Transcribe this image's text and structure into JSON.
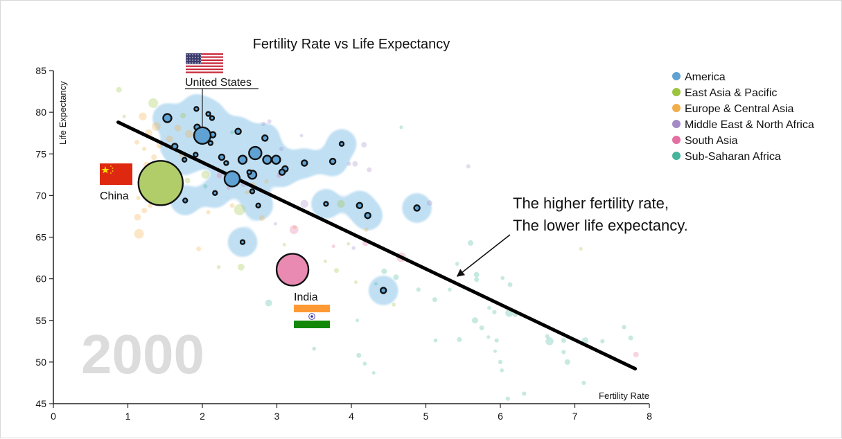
{
  "chart_data": {
    "type": "scatter",
    "title": "Fertility Rate vs Life Expectancy",
    "xlabel": "Fertility Rate",
    "ylabel": "Life Expectancy",
    "xlim": [
      0,
      8
    ],
    "ylim": [
      45,
      85
    ],
    "x_ticks": [
      "0",
      "1",
      "2",
      "3",
      "4",
      "5",
      "6",
      "7",
      "8"
    ],
    "y_ticks": [
      "45",
      "50",
      "55",
      "60",
      "65",
      "70",
      "75",
      "80",
      "85"
    ],
    "grid": false,
    "year": "2000",
    "legend_position": "top-right",
    "regions": [
      {
        "name": "America",
        "color": "#5fa2d3"
      },
      {
        "name": "East Asia & Pacific",
        "color": "#9cc43e"
      },
      {
        "name": "Europe & Central Asia",
        "color": "#f2ae4a"
      },
      {
        "name": "Middle East & North Africa",
        "color": "#a48ac7"
      },
      {
        "name": "South Asia",
        "color": "#e46fa0"
      },
      {
        "name": "Sub-Saharan Africa",
        "color": "#46b59b"
      }
    ],
    "highlighted_region": "America",
    "trend_line": {
      "x": [
        0.87,
        7.81
      ],
      "y": [
        78.8,
        49.2
      ]
    },
    "labeled_countries": [
      {
        "name": "United States",
        "region": "America",
        "x": 2.0,
        "y": 77.2,
        "size": 177,
        "flag": "us-flag",
        "label_position": "above-with-leader"
      },
      {
        "name": "China",
        "region": "East Asia & Pacific",
        "x": 1.44,
        "y": 71.5,
        "size": 1262,
        "flag": "china-flag",
        "label_position": "left"
      },
      {
        "name": "India",
        "region": "South Asia",
        "x": 3.21,
        "y": 61.1,
        "size": 652,
        "flag": "india-flag",
        "label_position": "below"
      }
    ],
    "annotation": {
      "lines": [
        "The higher fertility rate,",
        "The lower life expectancy."
      ],
      "arrow_target": {
        "x": 5.42,
        "y": 60.3
      }
    },
    "points": [
      {
        "region": "America",
        "x": 1.53,
        "y": 79.3,
        "size": 44
      },
      {
        "region": "America",
        "x": 1.92,
        "y": 80.4,
        "size": 11
      },
      {
        "region": "America",
        "x": 2.08,
        "y": 79.8,
        "size": 11
      },
      {
        "region": "America",
        "x": 2.13,
        "y": 79.3,
        "size": 11
      },
      {
        "region": "America",
        "x": 1.93,
        "y": 78.2,
        "size": 20
      },
      {
        "region": "America",
        "x": 2.14,
        "y": 77.3,
        "size": 20
      },
      {
        "region": "America",
        "x": 2.11,
        "y": 76.3,
        "size": 11
      },
      {
        "region": "America",
        "x": 1.63,
        "y": 75.9,
        "size": 20
      },
      {
        "region": "America",
        "x": 1.91,
        "y": 74.9,
        "size": 11
      },
      {
        "region": "America",
        "x": 1.76,
        "y": 74.3,
        "size": 11
      },
      {
        "region": "America",
        "x": 2.26,
        "y": 74.6,
        "size": 20
      },
      {
        "region": "America",
        "x": 2.32,
        "y": 73.9,
        "size": 11
      },
      {
        "region": "America",
        "x": 2.48,
        "y": 77.7,
        "size": 20
      },
      {
        "region": "America",
        "x": 2.84,
        "y": 76.9,
        "size": 20
      },
      {
        "region": "America",
        "x": 2.71,
        "y": 75.1,
        "size": 100
      },
      {
        "region": "America",
        "x": 2.54,
        "y": 74.3,
        "size": 44
      },
      {
        "region": "America",
        "x": 2.87,
        "y": 74.3,
        "size": 44
      },
      {
        "region": "America",
        "x": 2.99,
        "y": 74.3,
        "size": 44
      },
      {
        "region": "America",
        "x": 3.11,
        "y": 73.2,
        "size": 20
      },
      {
        "region": "America",
        "x": 3.07,
        "y": 72.8,
        "size": 20
      },
      {
        "region": "America",
        "x": 2.67,
        "y": 72.5,
        "size": 44
      },
      {
        "region": "America",
        "x": 2.63,
        "y": 72.8,
        "size": 11
      },
      {
        "region": "America",
        "x": 2.4,
        "y": 72.0,
        "size": 150
      },
      {
        "region": "America",
        "x": 2.17,
        "y": 70.3,
        "size": 11
      },
      {
        "region": "America",
        "x": 2.67,
        "y": 70.5,
        "size": 11
      },
      {
        "region": "America",
        "x": 1.77,
        "y": 69.4,
        "size": 11
      },
      {
        "region": "America",
        "x": 2.75,
        "y": 68.8,
        "size": 11
      },
      {
        "region": "America",
        "x": 3.37,
        "y": 73.9,
        "size": 20
      },
      {
        "region": "America",
        "x": 3.75,
        "y": 74.1,
        "size": 20
      },
      {
        "region": "America",
        "x": 3.87,
        "y": 76.2,
        "size": 11
      },
      {
        "region": "America",
        "x": 3.66,
        "y": 69.0,
        "size": 11
      },
      {
        "region": "America",
        "x": 4.11,
        "y": 68.8,
        "size": 20
      },
      {
        "region": "America",
        "x": 4.22,
        "y": 67.6,
        "size": 20
      },
      {
        "region": "America",
        "x": 4.88,
        "y": 68.5,
        "size": 20
      },
      {
        "region": "America",
        "x": 2.54,
        "y": 64.4,
        "size": 11
      },
      {
        "region": "America",
        "x": 4.43,
        "y": 58.6,
        "size": 20
      },
      {
        "region": "East Asia & Pacific",
        "x": 0.88,
        "y": 82.7,
        "size": 20
      },
      {
        "region": "East Asia & Pacific",
        "x": 1.34,
        "y": 81.1,
        "size": 60
      },
      {
        "region": "East Asia & Pacific",
        "x": 0.95,
        "y": 79.5,
        "size": 8
      },
      {
        "region": "East Asia & Pacific",
        "x": 1.74,
        "y": 79.6,
        "size": 20
      },
      {
        "region": "East Asia & Pacific",
        "x": 2.04,
        "y": 72.5,
        "size": 40
      },
      {
        "region": "East Asia & Pacific",
        "x": 1.8,
        "y": 71.8,
        "size": 20
      },
      {
        "region": "East Asia & Pacific",
        "x": 2.5,
        "y": 68.3,
        "size": 80
      },
      {
        "region": "East Asia & Pacific",
        "x": 2.52,
        "y": 61.4,
        "size": 30
      },
      {
        "region": "East Asia & Pacific",
        "x": 2.22,
        "y": 61.4,
        "size": 10
      },
      {
        "region": "East Asia & Pacific",
        "x": 3.86,
        "y": 69.0,
        "size": 40
      },
      {
        "region": "East Asia & Pacific",
        "x": 3.96,
        "y": 64.2,
        "size": 8
      },
      {
        "region": "East Asia & Pacific",
        "x": 3.8,
        "y": 61.0,
        "size": 15
      },
      {
        "region": "East Asia & Pacific",
        "x": 3.1,
        "y": 64.1,
        "size": 8
      },
      {
        "region": "East Asia & Pacific",
        "x": 3.65,
        "y": 62.1,
        "size": 8
      },
      {
        "region": "East Asia & Pacific",
        "x": 4.06,
        "y": 59.6,
        "size": 8
      },
      {
        "region": "East Asia & Pacific",
        "x": 4.57,
        "y": 56.9,
        "size": 10
      },
      {
        "region": "East Asia & Pacific",
        "x": 7.08,
        "y": 63.6,
        "size": 8
      },
      {
        "region": "Europe & Central Asia",
        "x": 1.2,
        "y": 79.5,
        "size": 40
      },
      {
        "region": "Europe & Central Asia",
        "x": 1.38,
        "y": 78.3,
        "size": 50
      },
      {
        "region": "Europe & Central Asia",
        "x": 1.28,
        "y": 77.5,
        "size": 35
      },
      {
        "region": "Europe & Central Asia",
        "x": 1.67,
        "y": 78.1,
        "size": 30
      },
      {
        "region": "Europe & Central Asia",
        "x": 1.82,
        "y": 77.4,
        "size": 40
      },
      {
        "region": "Europe & Central Asia",
        "x": 1.56,
        "y": 76.8,
        "size": 30
      },
      {
        "region": "Europe & Central Asia",
        "x": 1.42,
        "y": 76.0,
        "size": 20
      },
      {
        "region": "Europe & Central Asia",
        "x": 1.12,
        "y": 76.4,
        "size": 15
      },
      {
        "region": "Europe & Central Asia",
        "x": 1.22,
        "y": 75.6,
        "size": 12
      },
      {
        "region": "Europe & Central Asia",
        "x": 1.35,
        "y": 74.6,
        "size": 20
      },
      {
        "region": "Europe & Central Asia",
        "x": 1.25,
        "y": 73.7,
        "size": 25
      },
      {
        "region": "Europe & Central Asia",
        "x": 1.72,
        "y": 74.9,
        "size": 20
      },
      {
        "region": "Europe & Central Asia",
        "x": 1.03,
        "y": 73.2,
        "size": 12
      },
      {
        "region": "Europe & Central Asia",
        "x": 1.16,
        "y": 71.6,
        "size": 15
      },
      {
        "region": "Europe & Central Asia",
        "x": 1.14,
        "y": 69.7,
        "size": 12
      },
      {
        "region": "Europe & Central Asia",
        "x": 1.3,
        "y": 68.8,
        "size": 15
      },
      {
        "region": "Europe & Central Asia",
        "x": 1.22,
        "y": 68.2,
        "size": 20
      },
      {
        "region": "Europe & Central Asia",
        "x": 1.13,
        "y": 67.4,
        "size": 30
      },
      {
        "region": "Europe & Central Asia",
        "x": 1.15,
        "y": 65.4,
        "size": 60
      },
      {
        "region": "Europe & Central Asia",
        "x": 1.95,
        "y": 63.6,
        "size": 15
      },
      {
        "region": "Europe & Central Asia",
        "x": 2.4,
        "y": 68.8,
        "size": 15
      },
      {
        "region": "Europe & Central Asia",
        "x": 2.8,
        "y": 67.3,
        "size": 20
      },
      {
        "region": "Europe & Central Asia",
        "x": 2.6,
        "y": 70.4,
        "size": 12
      },
      {
        "region": "Europe & Central Asia",
        "x": 2.68,
        "y": 71.3,
        "size": 15
      },
      {
        "region": "Europe & Central Asia",
        "x": 2.08,
        "y": 68.0,
        "size": 12
      },
      {
        "region": "Europe & Central Asia",
        "x": 2.86,
        "y": 71.7,
        "size": 12
      },
      {
        "region": "Europe & Central Asia",
        "x": 3.24,
        "y": 66.2,
        "size": 10
      },
      {
        "region": "Europe & Central Asia",
        "x": 4.2,
        "y": 65.9,
        "size": 12
      },
      {
        "region": "Middle East & North Africa",
        "x": 2.82,
        "y": 78.6,
        "size": 12
      },
      {
        "region": "Middle East & North Africa",
        "x": 2.9,
        "y": 78.9,
        "size": 12
      },
      {
        "region": "Middle East & North Africa",
        "x": 3.33,
        "y": 77.2,
        "size": 8
      },
      {
        "region": "Middle East & North Africa",
        "x": 4.17,
        "y": 76.1,
        "size": 20
      },
      {
        "region": "Middle East & North Africa",
        "x": 4.05,
        "y": 73.8,
        "size": 20
      },
      {
        "region": "Middle East & North Africa",
        "x": 3.97,
        "y": 73.8,
        "size": 12
      },
      {
        "region": "Middle East & North Africa",
        "x": 4.24,
        "y": 73.1,
        "size": 15
      },
      {
        "region": "Middle East & North Africa",
        "x": 3.06,
        "y": 75.6,
        "size": 12
      },
      {
        "region": "Middle East & North Africa",
        "x": 3.37,
        "y": 69.0,
        "size": 40
      },
      {
        "region": "Middle East & North Africa",
        "x": 5.05,
        "y": 69.1,
        "size": 20
      },
      {
        "region": "Middle East & North Africa",
        "x": 5.57,
        "y": 73.5,
        "size": 12
      },
      {
        "region": "Middle East & North Africa",
        "x": 2.55,
        "y": 71.3,
        "size": 15
      },
      {
        "region": "Middle East & North Africa",
        "x": 2.98,
        "y": 66.6,
        "size": 8
      },
      {
        "region": "Middle East & North Africa",
        "x": 4.03,
        "y": 63.7,
        "size": 10
      },
      {
        "region": "South Asia",
        "x": 3.23,
        "y": 65.9,
        "size": 50
      },
      {
        "region": "South Asia",
        "x": 3.03,
        "y": 72.4,
        "size": 15
      },
      {
        "region": "South Asia",
        "x": 2.23,
        "y": 72.4,
        "size": 20
      },
      {
        "region": "South Asia",
        "x": 3.76,
        "y": 63.9,
        "size": 8
      },
      {
        "region": "South Asia",
        "x": 4.19,
        "y": 64.3,
        "size": 25
      },
      {
        "region": "South Asia",
        "x": 4.67,
        "y": 62.6,
        "size": 60
      },
      {
        "region": "South Asia",
        "x": 7.82,
        "y": 50.9,
        "size": 20
      },
      {
        "region": "South Asia",
        "x": 2.35,
        "y": 70.9,
        "size": 8
      },
      {
        "region": "Sub-Saharan Africa",
        "x": 4.67,
        "y": 78.2,
        "size": 8
      },
      {
        "region": "Sub-Saharan Africa",
        "x": 4.9,
        "y": 58.7,
        "size": 12
      },
      {
        "region": "Sub-Saharan Africa",
        "x": 4.6,
        "y": 60.2,
        "size": 20
      },
      {
        "region": "Sub-Saharan Africa",
        "x": 5.12,
        "y": 57.5,
        "size": 15
      },
      {
        "region": "Sub-Saharan Africa",
        "x": 5.32,
        "y": 58.7,
        "size": 10
      },
      {
        "region": "Sub-Saharan Africa",
        "x": 5.6,
        "y": 64.3,
        "size": 20
      },
      {
        "region": "Sub-Saharan Africa",
        "x": 5.42,
        "y": 61.8,
        "size": 10
      },
      {
        "region": "Sub-Saharan Africa",
        "x": 5.68,
        "y": 60.5,
        "size": 20
      },
      {
        "region": "Sub-Saharan Africa",
        "x": 5.68,
        "y": 59.9,
        "size": 15
      },
      {
        "region": "Sub-Saharan Africa",
        "x": 6.03,
        "y": 60.1,
        "size": 10
      },
      {
        "region": "Sub-Saharan Africa",
        "x": 6.13,
        "y": 59.3,
        "size": 15
      },
      {
        "region": "Sub-Saharan Africa",
        "x": 5.85,
        "y": 56.5,
        "size": 10
      },
      {
        "region": "Sub-Saharan Africa",
        "x": 5.92,
        "y": 56.0,
        "size": 12
      },
      {
        "region": "Sub-Saharan Africa",
        "x": 6.12,
        "y": 55.9,
        "size": 40
      },
      {
        "region": "Sub-Saharan Africa",
        "x": 6.2,
        "y": 55.7,
        "size": 15
      },
      {
        "region": "Sub-Saharan Africa",
        "x": 5.66,
        "y": 55.0,
        "size": 25
      },
      {
        "region": "Sub-Saharan Africa",
        "x": 5.75,
        "y": 54.1,
        "size": 15
      },
      {
        "region": "Sub-Saharan Africa",
        "x": 5.45,
        "y": 52.7,
        "size": 15
      },
      {
        "region": "Sub-Saharan Africa",
        "x": 5.13,
        "y": 52.6,
        "size": 10
      },
      {
        "region": "Sub-Saharan Africa",
        "x": 5.84,
        "y": 53.0,
        "size": 8
      },
      {
        "region": "Sub-Saharan Africa",
        "x": 5.95,
        "y": 52.6,
        "size": 12
      },
      {
        "region": "Sub-Saharan Africa",
        "x": 5.93,
        "y": 51.3,
        "size": 8
      },
      {
        "region": "Sub-Saharan Africa",
        "x": 6.0,
        "y": 50.0,
        "size": 12
      },
      {
        "region": "Sub-Saharan Africa",
        "x": 6.02,
        "y": 49.0,
        "size": 10
      },
      {
        "region": "Sub-Saharan Africa",
        "x": 6.32,
        "y": 46.2,
        "size": 12
      },
      {
        "region": "Sub-Saharan Africa",
        "x": 6.1,
        "y": 45.6,
        "size": 12
      },
      {
        "region": "Sub-Saharan Africa",
        "x": 6.63,
        "y": 53.1,
        "size": 12
      },
      {
        "region": "Sub-Saharan Africa",
        "x": 6.66,
        "y": 52.5,
        "size": 40
      },
      {
        "region": "Sub-Saharan Africa",
        "x": 6.85,
        "y": 52.6,
        "size": 15
      },
      {
        "region": "Sub-Saharan Africa",
        "x": 6.85,
        "y": 51.2,
        "size": 12
      },
      {
        "region": "Sub-Saharan Africa",
        "x": 6.9,
        "y": 50.0,
        "size": 20
      },
      {
        "region": "Sub-Saharan Africa",
        "x": 7.14,
        "y": 52.6,
        "size": 25
      },
      {
        "region": "Sub-Saharan Africa",
        "x": 7.37,
        "y": 52.5,
        "size": 12
      },
      {
        "region": "Sub-Saharan Africa",
        "x": 7.12,
        "y": 47.5,
        "size": 12
      },
      {
        "region": "Sub-Saharan Africa",
        "x": 7.66,
        "y": 54.2,
        "size": 12
      },
      {
        "region": "Sub-Saharan Africa",
        "x": 7.75,
        "y": 52.9,
        "size": 15
      },
      {
        "region": "Sub-Saharan Africa",
        "x": 4.08,
        "y": 55.0,
        "size": 8
      },
      {
        "region": "Sub-Saharan Africa",
        "x": 4.1,
        "y": 50.8,
        "size": 15
      },
      {
        "region": "Sub-Saharan Africa",
        "x": 4.18,
        "y": 49.8,
        "size": 10
      },
      {
        "region": "Sub-Saharan Africa",
        "x": 4.3,
        "y": 48.7,
        "size": 8
      },
      {
        "region": "Sub-Saharan Africa",
        "x": 3.5,
        "y": 51.6,
        "size": 10
      },
      {
        "region": "Sub-Saharan Africa",
        "x": 2.89,
        "y": 57.1,
        "size": 30
      },
      {
        "region": "Sub-Saharan Africa",
        "x": 4.44,
        "y": 60.9,
        "size": 20
      },
      {
        "region": "Sub-Saharan Africa",
        "x": 4.33,
        "y": 59.4,
        "size": 8
      },
      {
        "region": "Sub-Saharan Africa",
        "x": 2.04,
        "y": 71.1,
        "size": 12
      },
      {
        "region": "Sub-Saharan Africa",
        "x": 2.4,
        "y": 77.6,
        "size": 10
      }
    ]
  }
}
